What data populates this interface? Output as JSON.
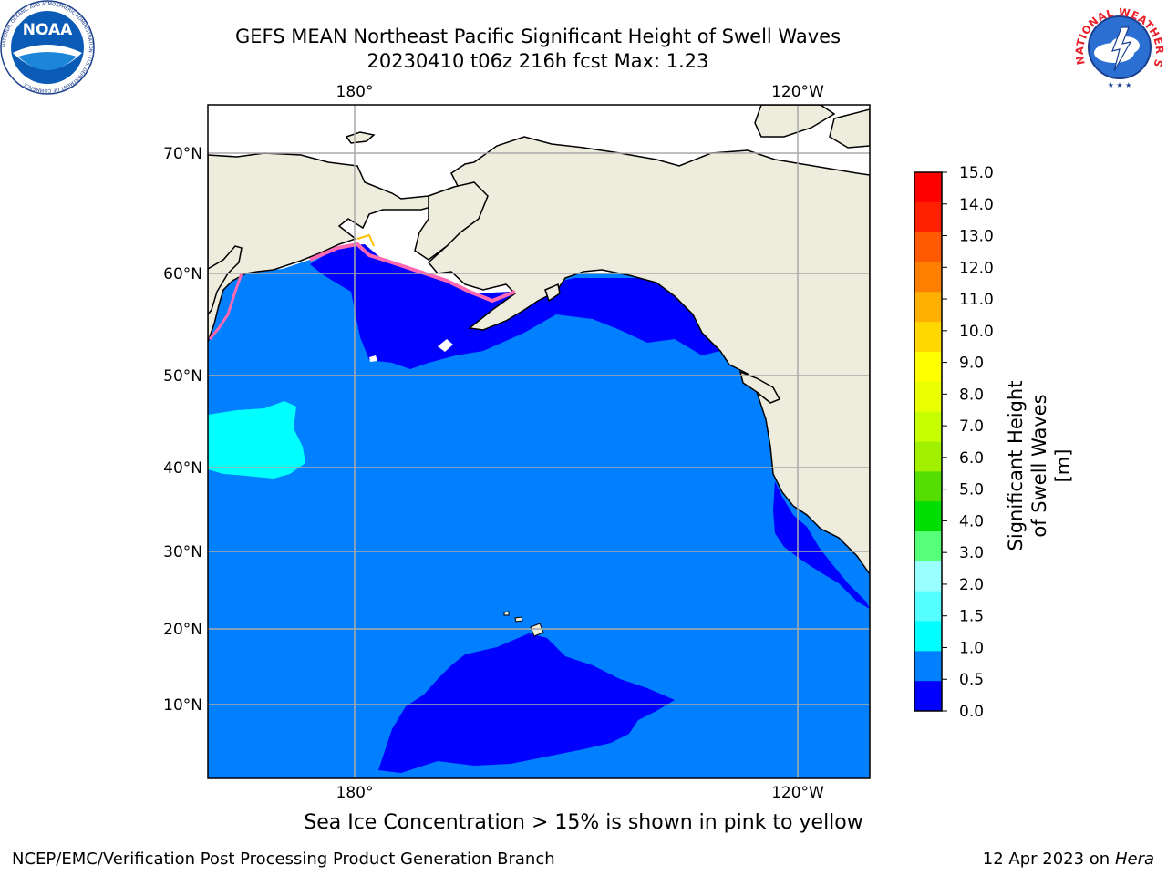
{
  "title": {
    "line1": "GEFS MEAN Northeast Pacific Significant Height of Swell Waves",
    "line2": "20230410 t06z 216h fcst   Max: 1.23"
  },
  "map": {
    "lon_ticks": [
      "180°",
      "120°W"
    ],
    "lat_ticks": [
      "70°N",
      "60°N",
      "50°N",
      "40°N",
      "30°N",
      "20°N",
      "10°N"
    ],
    "grid": true,
    "colors": {
      "land": "#eeecdc",
      "ocean_default": "#0080ff",
      "ocean_low": "#0000ff",
      "ocean_mid": "#00ffff",
      "ice_edge": "#ff69b4",
      "ice_yellow": "#ffc000"
    }
  },
  "colorbar": {
    "title": "Significant Height of Swell Waves [m]",
    "ticks": [
      "15.0",
      "14.0",
      "13.0",
      "12.0",
      "11.0",
      "10.0",
      "9.0",
      "8.0",
      "7.0",
      "6.0",
      "5.0",
      "4.0",
      "3.0",
      "2.0",
      "1.5",
      "1.0",
      "0.5",
      "0.0"
    ],
    "colors": [
      "#ff0000",
      "#ff2000",
      "#ff5a00",
      "#ff8000",
      "#ffb000",
      "#ffd800",
      "#ffff00",
      "#eaff00",
      "#c8ff00",
      "#a0f000",
      "#55dd00",
      "#00dd00",
      "#55ff77",
      "#99ffff",
      "#55ffff",
      "#00ffff",
      "#0080ff",
      "#0000ff"
    ]
  },
  "footnote": "Sea Ice Concentration > 15% is shown in pink to yellow",
  "footer": {
    "left": "NCEP/EMC/Verification Post Processing Product Generation Branch",
    "right_prefix": "12 Apr 2023 on ",
    "right_host": "Hera"
  },
  "logos": {
    "noaa_text": "NOAA",
    "noaa_ring": "NATIONAL OCEANIC AND ATMOSPHERIC ADMINISTRATION · U.S. DEPARTMENT OF COMMERCE",
    "nws_ring": "NATIONAL WEATHER SERVICE"
  }
}
